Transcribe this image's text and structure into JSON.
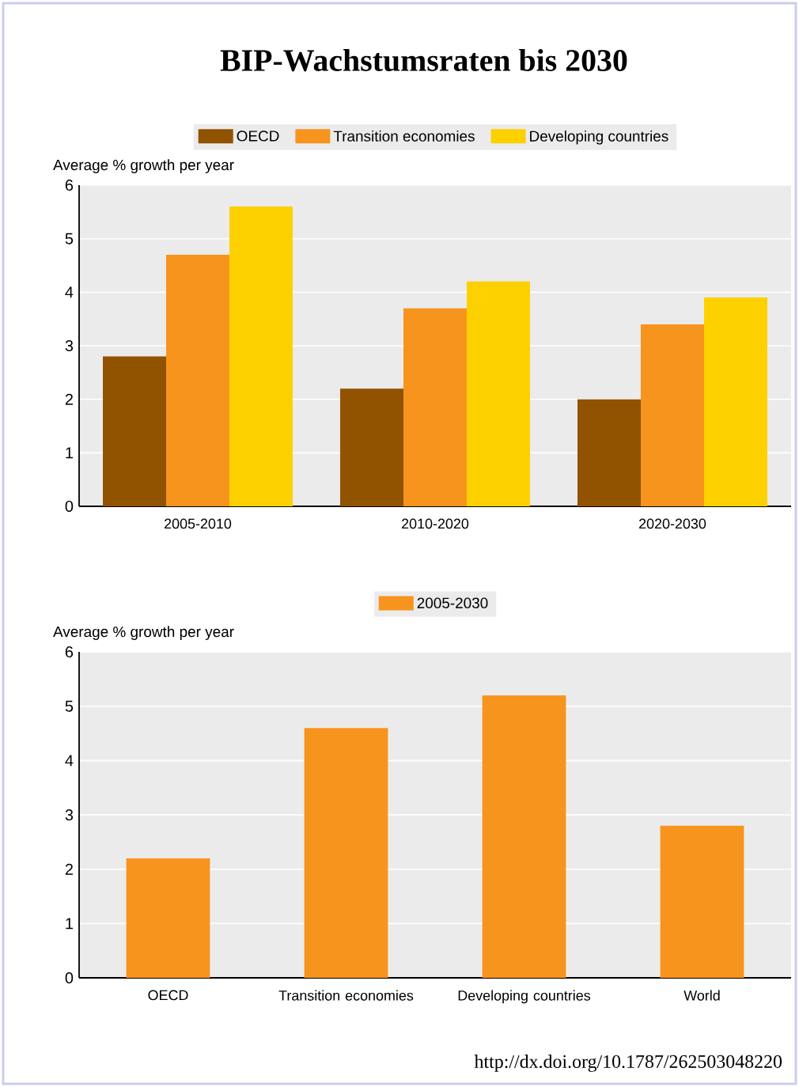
{
  "chart_data": [
    {
      "type": "bar",
      "title": "BIP-Wachstumsraten bis 2030",
      "ylabel": "Average % growth per year",
      "categories": [
        "2005-2010",
        "2010-2020",
        "2020-2030"
      ],
      "series": [
        {
          "name": "OECD",
          "color": "#915300",
          "values": [
            2.8,
            2.2,
            2.0
          ]
        },
        {
          "name": "Transition economies",
          "color": "#f7941d",
          "values": [
            4.7,
            3.7,
            3.4
          ]
        },
        {
          "name": "Developing countries",
          "color": "#fdd000",
          "values": [
            5.6,
            4.2,
            3.9
          ]
        }
      ],
      "ylim": [
        0,
        6
      ],
      "yticks": [
        0,
        1,
        2,
        3,
        4,
        5,
        6
      ],
      "grid": "y",
      "legend": "top"
    },
    {
      "type": "bar",
      "ylabel": "Average % growth per year",
      "categories": [
        "OECD",
        "Transition economies",
        "Developing countries",
        "World"
      ],
      "series": [
        {
          "name": "2005-2030",
          "color": "#f7941d",
          "values": [
            2.2,
            4.6,
            5.2,
            2.8
          ]
        }
      ],
      "ylim": [
        0,
        6
      ],
      "yticks": [
        0,
        1,
        2,
        3,
        4,
        5,
        6
      ],
      "grid": "y",
      "legend": "top",
      "annotations": [
        "http://dx.doi.org/10.1787/262503048220"
      ]
    }
  ]
}
